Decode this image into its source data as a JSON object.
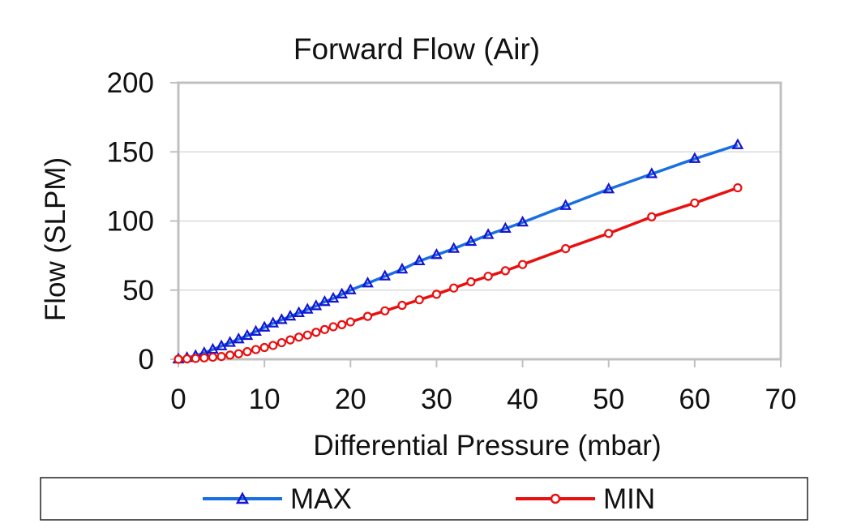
{
  "chart_data": {
    "type": "line",
    "title": "Forward Flow (Air)",
    "xlabel": "Differential Pressure (mbar)",
    "ylabel": "Flow (SLPM)",
    "xlim": [
      0,
      70
    ],
    "ylim": [
      0,
      200
    ],
    "xticks": [
      "0",
      "10",
      "20",
      "30",
      "40",
      "50",
      "60",
      "70"
    ],
    "yticks": [
      "0",
      "50",
      "100",
      "150",
      "200"
    ],
    "grid": "horizontal",
    "legend_position": "bottom",
    "series": [
      {
        "name": "MAX",
        "color": "#1a6fe0",
        "marker": "triangle",
        "marker_color": "#1414d4",
        "x": [
          0,
          1,
          2,
          3,
          4,
          5,
          6,
          7,
          8,
          9,
          10,
          11,
          12,
          13,
          14,
          15,
          16,
          17,
          18,
          19,
          20,
          22,
          24,
          26,
          28,
          30,
          32,
          34,
          36,
          38,
          40,
          45,
          50,
          55,
          60,
          65
        ],
        "y": [
          0,
          1,
          2.5,
          4.5,
          7,
          9.5,
          12,
          14.5,
          17,
          20,
          23,
          26,
          28.5,
          31,
          33.5,
          36,
          38.5,
          41.5,
          44,
          47,
          50,
          55,
          60,
          65,
          71,
          75.5,
          80,
          85,
          90,
          94.5,
          99,
          111,
          123,
          134,
          145,
          155
        ]
      },
      {
        "name": "MIN",
        "color": "#e81010",
        "marker": "circle",
        "marker_color": "#e81010",
        "x": [
          0,
          1,
          2,
          3,
          4,
          5,
          6,
          7,
          8,
          9,
          10,
          11,
          12,
          13,
          14,
          15,
          16,
          17,
          18,
          19,
          20,
          22,
          24,
          26,
          28,
          30,
          32,
          34,
          36,
          38,
          40,
          45,
          50,
          55,
          60,
          65
        ],
        "y": [
          0,
          0.3,
          0.6,
          1,
          1.5,
          2,
          3,
          4,
          5.5,
          7,
          8.5,
          10,
          12,
          14,
          16,
          17.5,
          19.5,
          21.5,
          23.5,
          25,
          27,
          31,
          35,
          39,
          43,
          47,
          51.5,
          56,
          60,
          64,
          68.5,
          80,
          91,
          103,
          113,
          124
        ]
      }
    ]
  }
}
